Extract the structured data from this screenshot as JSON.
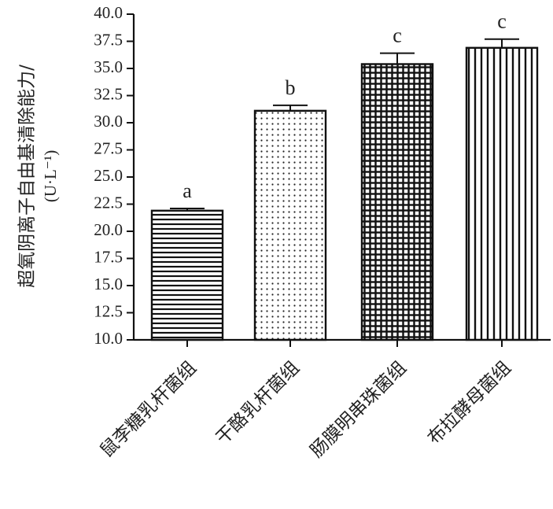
{
  "chart_data": {
    "type": "bar",
    "categories": [
      "鼠李糖乳杆菌组",
      "干酪乳杆菌组",
      "肠膜明串珠菌组",
      "布拉酵母菌组"
    ],
    "values": [
      21.9,
      31.1,
      35.4,
      36.9
    ],
    "errors": [
      0.2,
      0.5,
      1.0,
      0.8
    ],
    "significance": [
      "a",
      "b",
      "c",
      "c"
    ],
    "patterns": [
      "horizontal-stripes",
      "dots",
      "grid",
      "vertical-stripes"
    ],
    "ylabel": "超氧阴离子自由基清除能力/",
    "ylabel_unit": "(U·L⁻¹)",
    "ylim": [
      10.0,
      40.0
    ],
    "yticks": [
      "10.0",
      "12.5",
      "15.0",
      "17.5",
      "20.0",
      "22.5",
      "25.0",
      "27.5",
      "30.0",
      "32.5",
      "35.0",
      "37.5",
      "40.0"
    ],
    "grid": false,
    "colors": {
      "stroke": "#111111",
      "fill": "#ffffff"
    }
  }
}
